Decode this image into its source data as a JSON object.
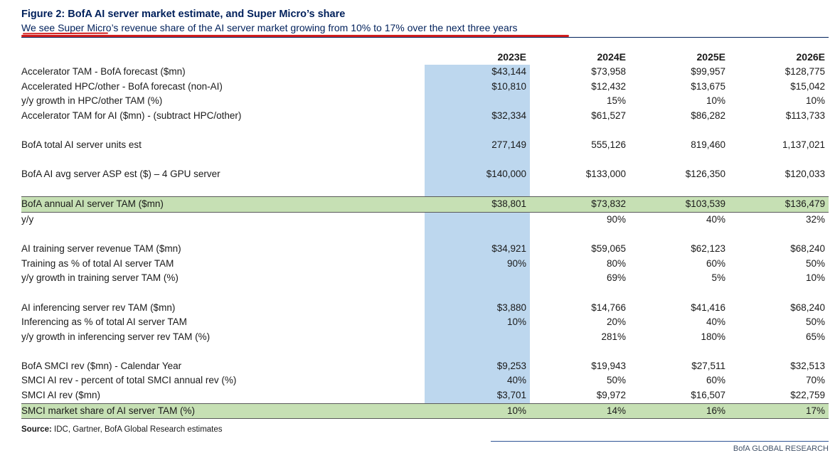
{
  "figure": {
    "title": "Figure 2: BofA AI server market estimate, and Super Micro’s share",
    "subtitle": "We see Super Micro’s revenue share of the AI server market growing from 10% to 17% over the next three years",
    "source_label": "Source:",
    "source_text": " IDC, Gartner, BofA Global Research estimates",
    "footer": "BofA GLOBAL RESEARCH"
  },
  "colors": {
    "title_navy": "#00205b",
    "highlight_column_blue": "#bdd7ee",
    "highlight_row_green": "#c6e0b4",
    "annotation_red": "#d21f1f"
  },
  "table": {
    "columns": [
      "2023E",
      "2024E",
      "2025E",
      "2026E"
    ],
    "rows": [
      {
        "label": "Accelerator TAM - BofA forecast ($mn)",
        "values": [
          "$43,144",
          "$73,958",
          "$99,957",
          "$128,775"
        ]
      },
      {
        "label": "Accelerated HPC/other - BofA forecast (non-AI)",
        "values": [
          "$10,810",
          "$12,432",
          "$13,675",
          "$15,042"
        ]
      },
      {
        "label": "y/y growth in HPC/other TAM (%)",
        "values": [
          "",
          "15%",
          "10%",
          "10%"
        ]
      },
      {
        "label": "Accelerator TAM for AI ($mn) - (subtract HPC/other)",
        "values": [
          "$32,334",
          "$61,527",
          "$86,282",
          "$113,733"
        ]
      },
      {
        "label": "BofA total AI server units est",
        "values": [
          "277,149",
          "555,126",
          "819,460",
          "1,137,021"
        ]
      },
      {
        "label": "BofA AI avg server ASP est ($) – 4 GPU server",
        "values": [
          "$140,000",
          "$133,000",
          "$126,350",
          "$120,033"
        ]
      },
      {
        "label": "BofA annual AI server TAM ($mn)",
        "values": [
          "$38,801",
          "$73,832",
          "$103,539",
          "$136,479"
        ]
      },
      {
        "label": "y/y",
        "values": [
          "",
          "90%",
          "40%",
          "32%"
        ]
      },
      {
        "label": "AI training server revenue TAM ($mn)",
        "values": [
          "$34,921",
          "$59,065",
          "$62,123",
          "$68,240"
        ]
      },
      {
        "label": "Training as % of total AI server TAM",
        "values": [
          "90%",
          "80%",
          "60%",
          "50%"
        ]
      },
      {
        "label": "y/y growth in training server TAM (%)",
        "values": [
          "",
          "69%",
          "5%",
          "10%"
        ]
      },
      {
        "label": "AI inferencing server rev TAM ($mn)",
        "values": [
          "$3,880",
          "$14,766",
          "$41,416",
          "$68,240"
        ]
      },
      {
        "label": "Inferencing as % of total AI server TAM",
        "values": [
          "10%",
          "20%",
          "40%",
          "50%"
        ]
      },
      {
        "label": "y/y growth in inferencing server rev TAM (%)",
        "values": [
          "",
          "281%",
          "180%",
          "65%"
        ]
      },
      {
        "label": "BofA SMCI rev ($mn)  - Calendar Year",
        "values": [
          "$9,253",
          "$19,943",
          "$27,511",
          "$32,513"
        ]
      },
      {
        "label": "SMCI AI rev - percent of total SMCI annual rev (%)",
        "values": [
          "40%",
          "50%",
          "60%",
          "70%"
        ]
      },
      {
        "label": "SMCI AI rev ($mn)",
        "values": [
          "$3,701",
          "$9,972",
          "$16,507",
          "$22,759"
        ]
      },
      {
        "label": "SMCI market share of AI server TAM (%)",
        "values": [
          "10%",
          "14%",
          "16%",
          "17%"
        ]
      }
    ]
  }
}
